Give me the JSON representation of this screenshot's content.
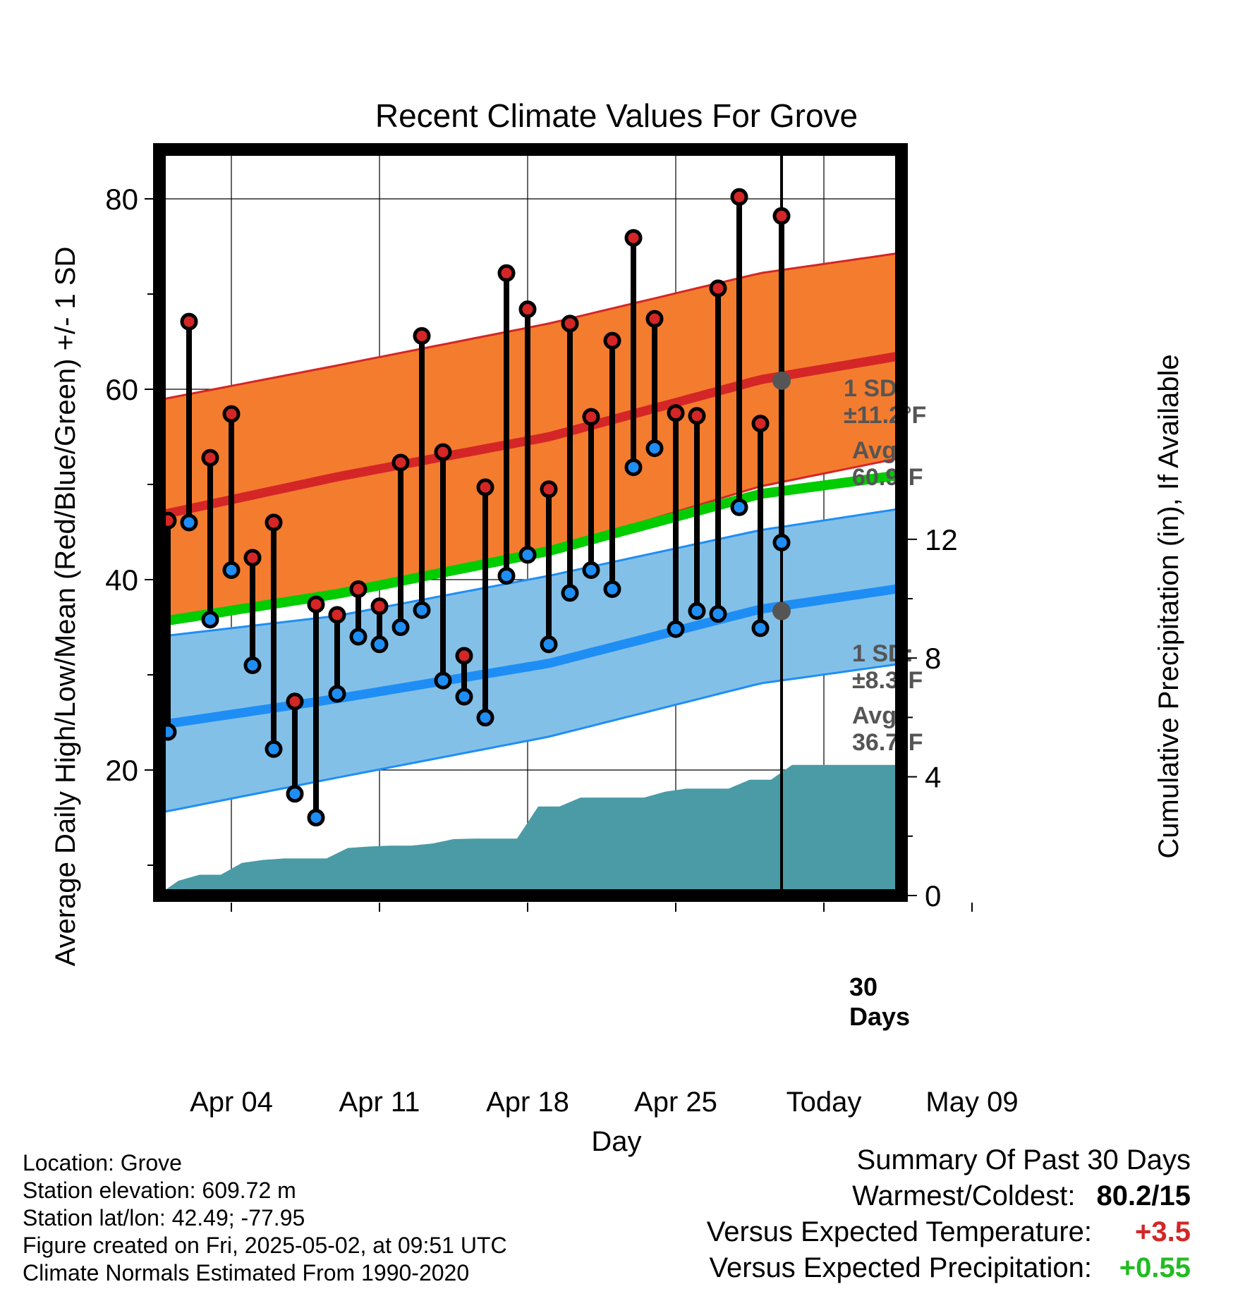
{
  "chart_data": {
    "type": "line",
    "title": "Recent Climate Values For Grove",
    "xlabel": "Day",
    "ylabel": "Average Daily High/Low/Mean (Red/Blue/Green) +/- 1 SD",
    "y2label": "Cumulative Precipitation (in), If Available",
    "ylim": [
      7,
      85
    ],
    "y2lim": [
      0,
      30
    ],
    "y_ticks": [
      "20",
      "40",
      "60",
      "80"
    ],
    "y2_ticks": [
      "0",
      "4",
      "8",
      "12"
    ],
    "x_ticks": [
      "Apr 04",
      "Apr 11",
      "Apr 18",
      "Apr 25",
      "Today",
      "May 09"
    ],
    "today_label": "30\nDays",
    "grid": true,
    "days": [
      1,
      2,
      3,
      4,
      5,
      6,
      7,
      8,
      9,
      10,
      11,
      12,
      13,
      14,
      15,
      16,
      17,
      18,
      19,
      20,
      21,
      22,
      23,
      24,
      25,
      26,
      27,
      28,
      29,
      30
    ],
    "daily_high": [
      46.2,
      67.1,
      52.8,
      57.4,
      42.3,
      46.0,
      27.2,
      37.4,
      36.3,
      39.0,
      37.2,
      52.3,
      65.6,
      53.4,
      32.0,
      49.7,
      72.2,
      68.4,
      49.5,
      66.9,
      57.1,
      65.1,
      75.9,
      67.4,
      57.5,
      57.2,
      70.6,
      80.2,
      56.4,
      78.2
    ],
    "daily_low": [
      24.0,
      46.0,
      35.8,
      41.0,
      31.0,
      22.2,
      17.5,
      15.0,
      28.0,
      34.0,
      33.2,
      35.0,
      36.8,
      29.4,
      27.7,
      25.5,
      40.4,
      42.6,
      33.2,
      38.6,
      41.0,
      39.0,
      51.8,
      53.8,
      34.8,
      36.7,
      36.4,
      47.6,
      34.9,
      43.9
    ],
    "normals_x": [
      -1,
      9,
      19,
      29,
      39
    ],
    "normal_high": [
      46.0,
      50.8,
      55.0,
      61.0,
      64.8
    ],
    "normal_high_upper": [
      58.2,
      62.5,
      66.9,
      72.2,
      75.4
    ],
    "normal_high_lower": [
      34.4,
      38.9,
      43.1,
      49.8,
      54.3
    ],
    "normal_mean": [
      35.0,
      38.5,
      43.0,
      49.0,
      52.0
    ],
    "normal_low": [
      24.2,
      27.5,
      31.2,
      36.9,
      40.2
    ],
    "normal_low_upper": [
      33.6,
      36.2,
      40.4,
      45.2,
      48.6
    ],
    "normal_low_lower": [
      14.8,
      19.2,
      23.5,
      29.1,
      32.2
    ],
    "cumulative_precip": [
      0.0,
      0.5,
      0.7,
      0.7,
      1.1,
      1.2,
      1.25,
      1.25,
      1.25,
      1.6,
      1.65,
      1.68,
      1.68,
      1.75,
      1.9,
      1.92,
      1.92,
      1.92,
      3.0,
      3.0,
      3.3,
      3.3,
      3.3,
      3.3,
      3.5,
      3.6,
      3.6,
      3.6,
      3.9,
      3.9,
      4.4
    ],
    "precip_extend": 4.4,
    "annotations": {
      "high_sd": "1 SD:",
      "high_sd_value": "±11.2°F",
      "high_avg": "Avg:",
      "high_avg_value": "60.9°F",
      "low_sd": "1 SD:",
      "low_sd_value": "±8.3°F",
      "low_avg": "Avg:",
      "low_avg_value": "36.7°F",
      "high_avg_point": 60.9,
      "low_avg_point": 36.7
    },
    "colors": {
      "high_band": "#F47C2F",
      "high_line": "#D42626",
      "low_band": "#83C0E8",
      "low_line": "#1E8EF5",
      "mean_line": "#00CC00",
      "precip": "#4A9BA6",
      "high_marker": "#D42626",
      "low_marker": "#1E8EF5"
    }
  },
  "info": {
    "location": "Location: Grove",
    "elevation": "Station elevation: 609.72 m",
    "latlon": "Station lat/lon: 42.49; -77.95",
    "created": "Figure created on Fri, 2025-05-02, at 09:51 UTC",
    "normals": "Climate Normals Estimated From 1990-2020"
  },
  "summary": {
    "heading": "Summary Of Past 30 Days",
    "warm_cold_label": "Warmest/Coldest:",
    "warm_cold_value": "80.2/15",
    "temp_label": "Versus Expected Temperature:",
    "temp_value": "+3.5",
    "temp_color": "#D42626",
    "precip_label": "Versus Expected Precipitation:",
    "precip_value": "+0.55",
    "precip_color": "#22BB22"
  }
}
